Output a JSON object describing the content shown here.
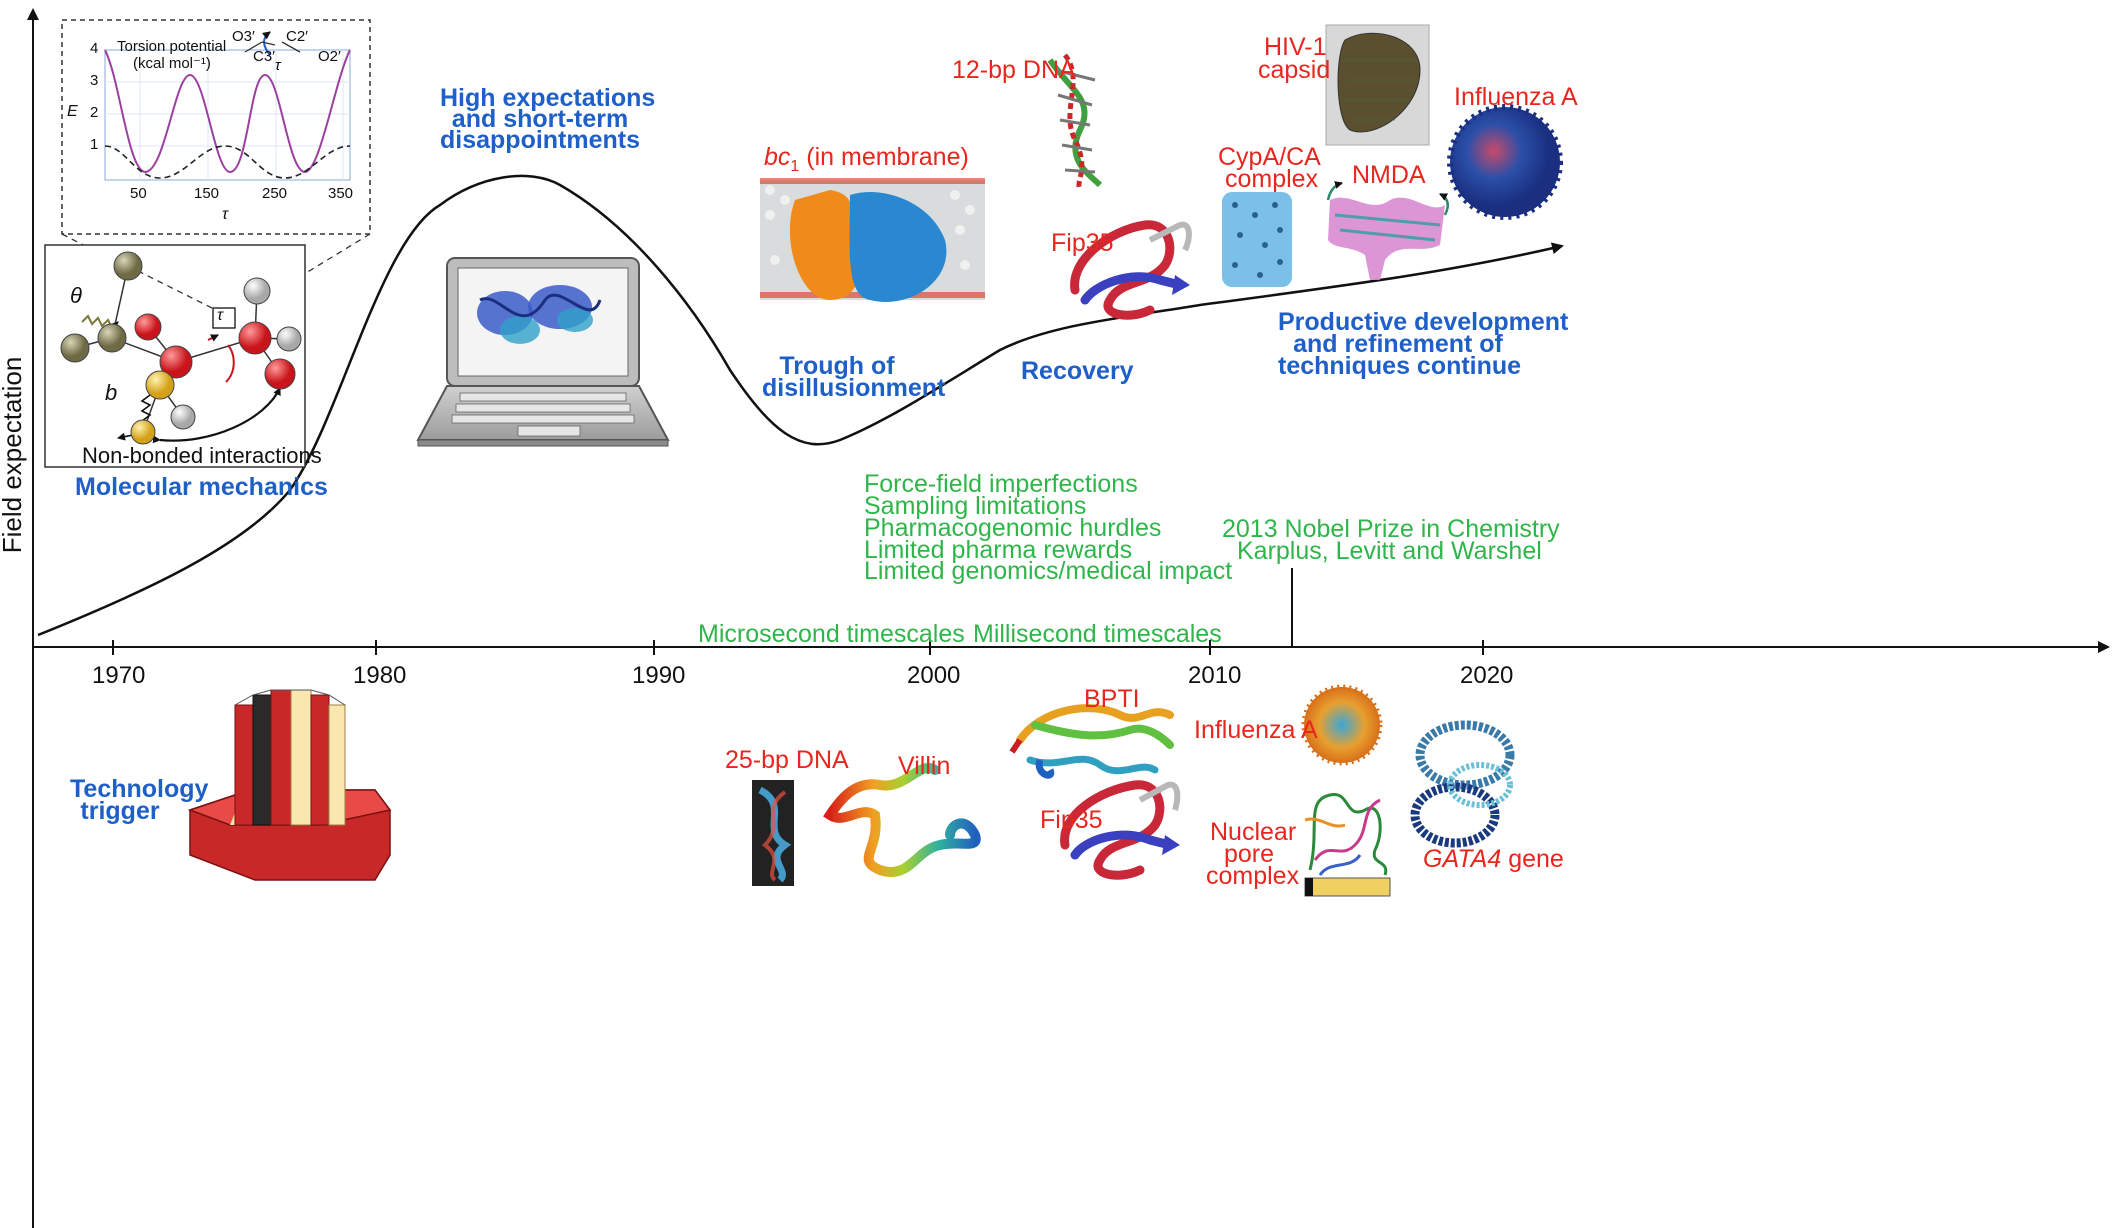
{
  "axis": {
    "y_label": "Field expectation"
  },
  "years": [
    "1970",
    "1980",
    "1990",
    "2000",
    "2010",
    "2020"
  ],
  "phases": {
    "molecular_mechanics": "Molecular mechanics",
    "high_expectations": [
      "High expectations",
      "and short-term",
      "disappointments"
    ],
    "trough": [
      "Trough of",
      "disillusionment"
    ],
    "recovery": "Recovery",
    "productive": [
      "Productive development",
      "and refinement of",
      "techniques continue"
    ],
    "technology_trigger": [
      "Technology",
      "trigger"
    ]
  },
  "inset": {
    "title_line1": "Torsion potential",
    "title_line2": "(kcal mol⁻¹)",
    "y_axis_label": "E",
    "x_axis_label": "τ",
    "y_ticks": [
      "4",
      "3",
      "2",
      "1"
    ],
    "x_ticks": [
      "50",
      "150",
      "250",
      "350"
    ],
    "atoms": [
      "O3′",
      "C2′",
      "C3′",
      "O2′"
    ],
    "tau": "τ"
  },
  "mm_diagram": {
    "theta": "θ",
    "tau": "τ",
    "bond": "b",
    "nonbonded": "Non-bonded interactions"
  },
  "systems_top": {
    "dna12": "12-bp DNA",
    "hiv_line1": "HIV-1",
    "hiv_line2": "capsid",
    "influenza": "Influenza A",
    "bc1_prefix": "bc",
    "bc1_sub": "1",
    "bc1_suffix": " (in membrane)",
    "cypa_line1": "CypA/CA",
    "cypa_line2": "complex",
    "nmda": "NMDA",
    "fip35": "Fip35"
  },
  "systems_bottom": {
    "dna25": "25-bp DNA",
    "villin": "Villin",
    "bpti": "BPTI",
    "fip35": "Fip35",
    "influenza": "Influenza A",
    "npc_line1": "Nuclear",
    "npc_line2": "pore",
    "npc_line3": "complex",
    "gata4_italic": "GATA4",
    "gata4_rest": " gene"
  },
  "limitations": [
    "Force-field imperfections",
    "Sampling limitations",
    "Pharmacogenomic hurdles",
    "Limited pharma rewards",
    "Limited genomics/medical impact"
  ],
  "timescales": {
    "micro": "Microsecond timescales",
    "milli": "Millisecond timescales"
  },
  "nobel": {
    "line1": "2013 Nobel Prize in Chemistry",
    "line2": "Karplus, Levitt and Warshel"
  },
  "colors": {
    "phase_blue": "#1f5fc8",
    "system_red": "#e8261e",
    "event_green": "#2fb64a",
    "curve_purple": "#9b3fa0"
  }
}
